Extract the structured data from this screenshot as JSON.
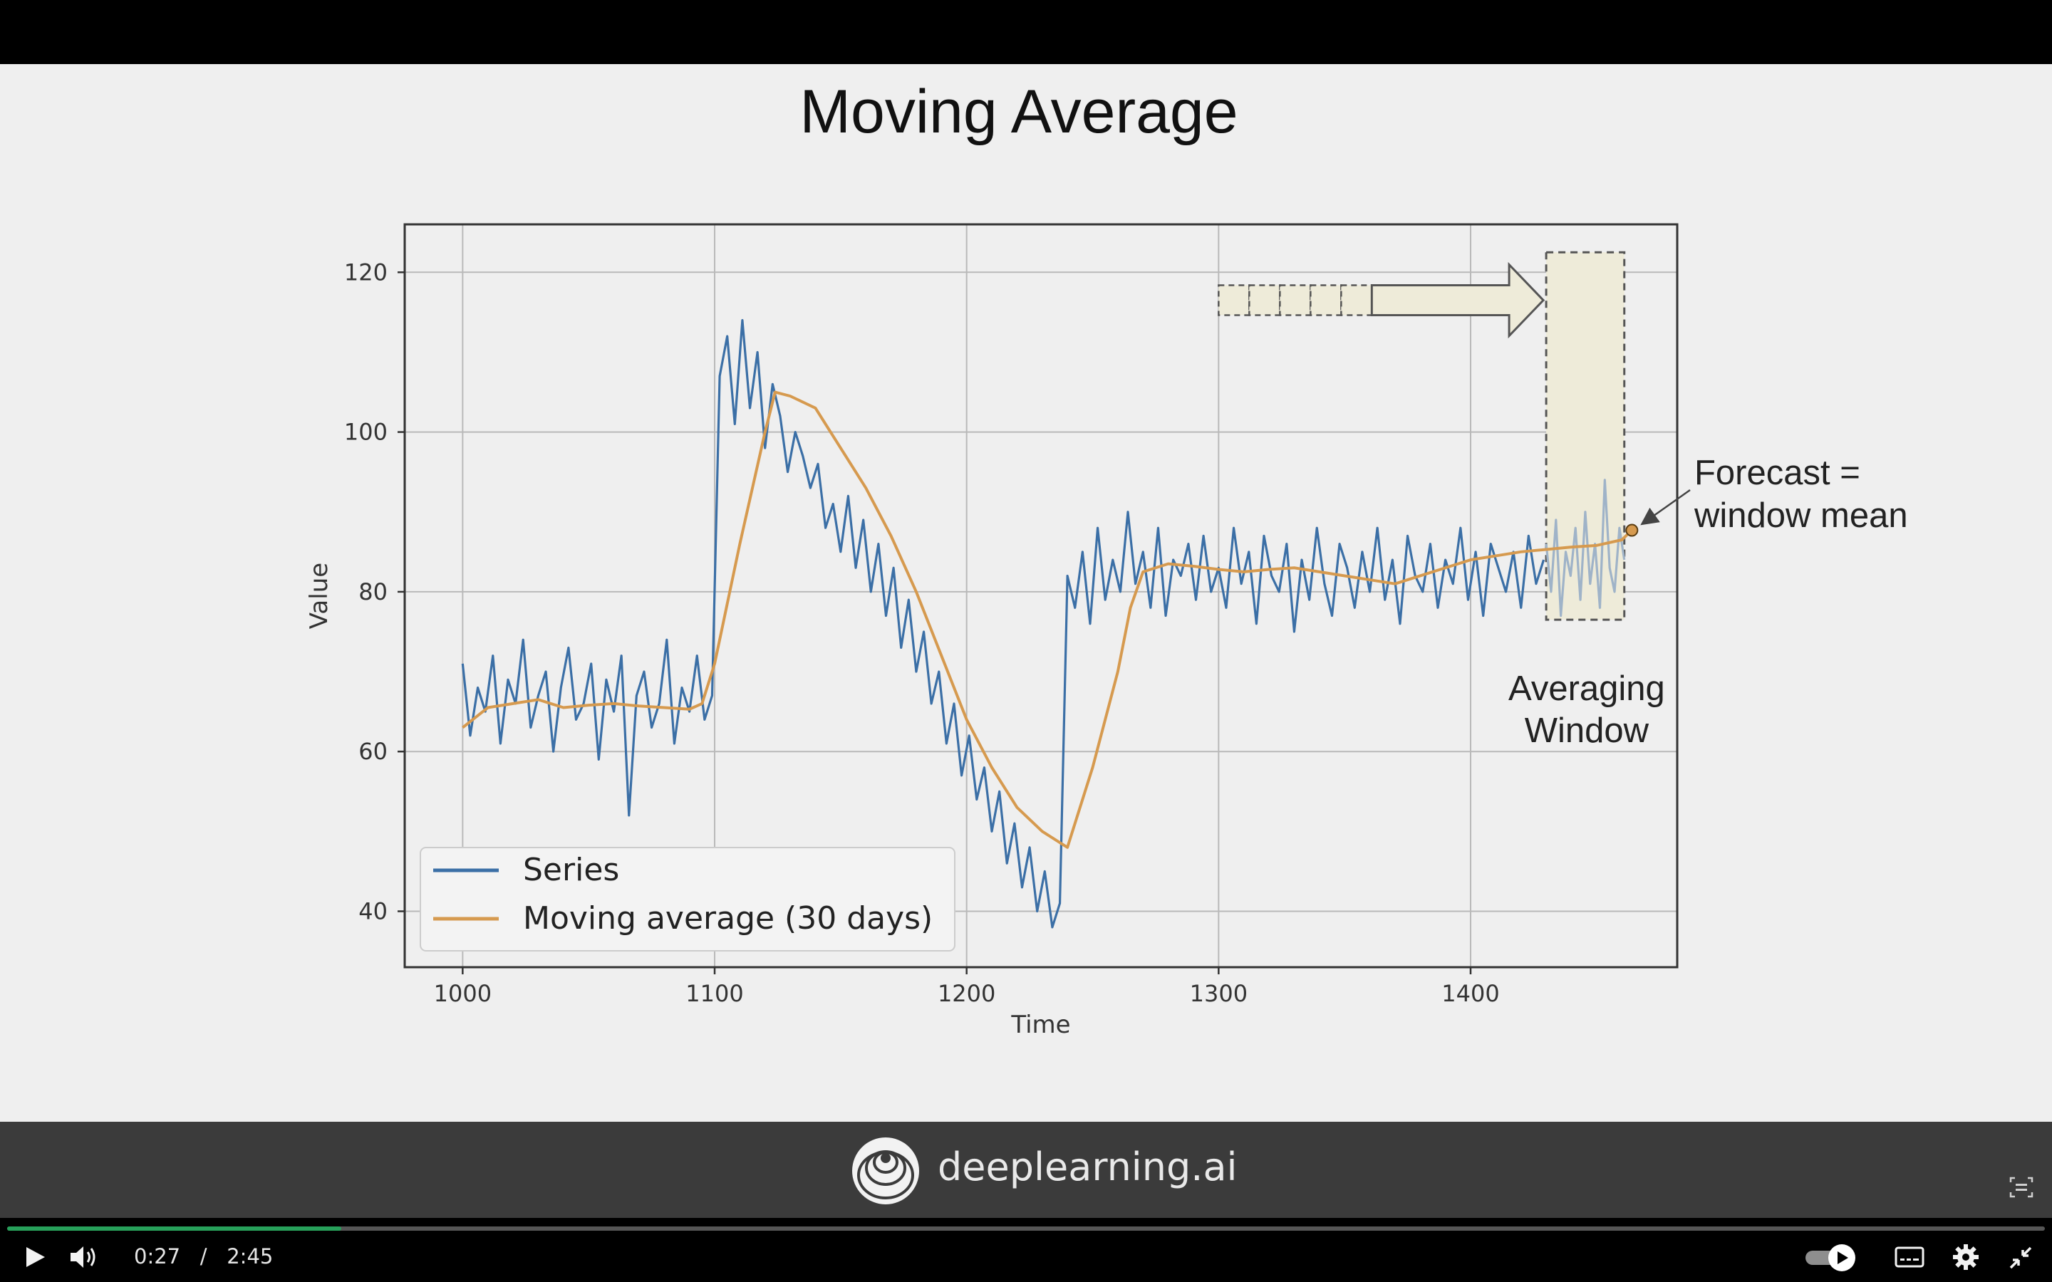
{
  "slide": {
    "title": "Moving Average",
    "brand": "deeplearning.ai"
  },
  "player": {
    "current_time": "0:27",
    "separator": "/",
    "duration": "2:45",
    "progress_fraction": 0.164
  },
  "chart_data": {
    "type": "line",
    "xlabel": "Time",
    "ylabel": "Value",
    "xlim": [
      977,
      1482
    ],
    "ylim": [
      33,
      126
    ],
    "x_ticks": [
      1000,
      1100,
      1200,
      1300,
      1400
    ],
    "y_ticks": [
      40,
      60,
      80,
      100,
      120
    ],
    "grid": true,
    "legend_position": "lower-left",
    "series": [
      {
        "name": "Series",
        "color": "#3b6fa6",
        "x": [
          1000,
          1003,
          1006,
          1009,
          1012,
          1015,
          1018,
          1021,
          1024,
          1027,
          1030,
          1033,
          1036,
          1039,
          1042,
          1045,
          1048,
          1051,
          1054,
          1057,
          1060,
          1063,
          1066,
          1069,
          1072,
          1075,
          1078,
          1081,
          1084,
          1087,
          1090,
          1093,
          1096,
          1099,
          1102,
          1105,
          1108,
          1111,
          1114,
          1117,
          1120,
          1123,
          1126,
          1129,
          1132,
          1135,
          1138,
          1141,
          1144,
          1147,
          1150,
          1153,
          1156,
          1159,
          1162,
          1165,
          1168,
          1171,
          1174,
          1177,
          1180,
          1183,
          1186,
          1189,
          1192,
          1195,
          1198,
          1201,
          1204,
          1207,
          1210,
          1213,
          1216,
          1219,
          1222,
          1225,
          1228,
          1231,
          1234,
          1237,
          1240,
          1243,
          1246,
          1249,
          1252,
          1255,
          1258,
          1261,
          1264,
          1267,
          1270,
          1273,
          1276,
          1279,
          1282,
          1285,
          1288,
          1291,
          1294,
          1297,
          1300,
          1303,
          1306,
          1309,
          1312,
          1315,
          1318,
          1321,
          1324,
          1327,
          1330,
          1333,
          1336,
          1339,
          1342,
          1345,
          1348,
          1351,
          1354,
          1357,
          1360,
          1363,
          1366,
          1369,
          1372,
          1375,
          1378,
          1381,
          1384,
          1387,
          1390,
          1393,
          1396,
          1399,
          1402,
          1405,
          1408,
          1411,
          1414,
          1417,
          1420,
          1423,
          1426,
          1429
        ],
        "values": [
          71,
          62,
          68,
          65,
          72,
          61,
          69,
          66,
          74,
          63,
          67,
          70,
          60,
          68,
          73,
          64,
          66,
          71,
          59,
          69,
          65,
          72,
          52,
          67,
          70,
          63,
          66,
          74,
          61,
          68,
          65,
          72,
          64,
          67,
          107,
          112,
          101,
          114,
          103,
          110,
          98,
          106,
          102,
          95,
          100,
          97,
          93,
          96,
          88,
          91,
          85,
          92,
          83,
          89,
          80,
          86,
          77,
          83,
          73,
          79,
          70,
          75,
          66,
          70,
          61,
          66,
          57,
          62,
          54,
          58,
          50,
          55,
          46,
          51,
          43,
          48,
          40,
          45,
          38,
          41,
          82,
          78,
          85,
          76,
          88,
          79,
          84,
          80,
          90,
          81,
          85,
          78,
          88,
          77,
          84,
          82,
          86,
          79,
          87,
          80,
          83,
          78,
          88,
          81,
          85,
          76,
          87,
          82,
          80,
          86,
          75,
          84,
          79,
          88,
          81,
          77,
          86,
          83,
          78,
          85,
          80,
          88,
          79,
          84,
          76,
          87,
          82,
          80,
          86,
          78,
          84,
          81,
          88,
          79,
          85,
          77,
          86,
          83,
          80,
          85,
          78,
          87,
          81,
          84
        ],
        "window_values": [
          86,
          80,
          89,
          77,
          85,
          82,
          88,
          79,
          90,
          81,
          86,
          78,
          94,
          83,
          80,
          88,
          84
        ]
      },
      {
        "name": "Moving average (30 days)",
        "color": "#d69a4f",
        "x": [
          1000,
          1010,
          1020,
          1030,
          1040,
          1050,
          1060,
          1070,
          1080,
          1090,
          1095,
          1100,
          1110,
          1120,
          1124,
          1130,
          1140,
          1150,
          1160,
          1170,
          1180,
          1190,
          1200,
          1210,
          1220,
          1230,
          1240,
          1250,
          1260,
          1265,
          1270,
          1280,
          1290,
          1300,
          1310,
          1320,
          1330,
          1340,
          1350,
          1360,
          1370,
          1380,
          1390,
          1400,
          1410,
          1420,
          1430,
          1440,
          1450,
          1460,
          1464
        ],
        "values": [
          63,
          65.5,
          66,
          66.5,
          65.5,
          65.8,
          66,
          65.7,
          65.5,
          65.3,
          66,
          71,
          86,
          100,
          105,
          104.5,
          103,
          98,
          93,
          87,
          80,
          72,
          64,
          58,
          53,
          50,
          48,
          58,
          70,
          78,
          82.5,
          83.5,
          83.2,
          82.8,
          82.5,
          82.8,
          83,
          82.5,
          82,
          81.5,
          81,
          82,
          83,
          84,
          84.5,
          85,
          85.3,
          85.6,
          85.8,
          86.5,
          87.7
        ]
      }
    ],
    "annotations": {
      "window_label": "Averaging\nWindow",
      "window_label_line1": "Averaging",
      "window_label_line2": "Window",
      "window_x": [
        1430,
        1461
      ],
      "window_y": [
        76.5,
        122.5
      ],
      "forecast_label_line1": "Forecast =",
      "forecast_label_line2": "window mean",
      "forecast_point": {
        "x": 1464,
        "y": 87.7
      }
    }
  }
}
